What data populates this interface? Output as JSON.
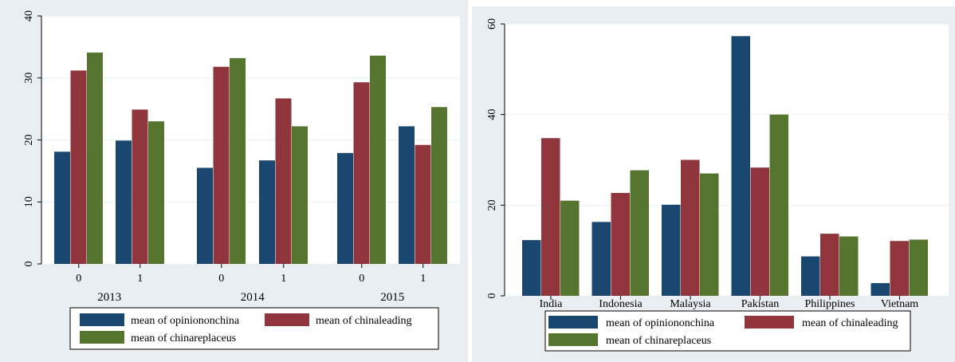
{
  "colors": {
    "series": [
      "#1a476f",
      "#90353b",
      "#55752f"
    ],
    "panel_background": "#e9eef3",
    "plot_background": "#ffffff",
    "gridline": "#eaf2f3"
  },
  "chart_data": [
    {
      "type": "bar",
      "ylim": [
        0,
        40
      ],
      "yticks": [
        "0",
        "10",
        "20",
        "30",
        "40"
      ],
      "grid": true,
      "legend_position": "bottom",
      "groups": [
        {
          "label": "2013",
          "categories": [
            {
              "label": "0",
              "values": [
                18.1,
                31.2,
                34.1
              ]
            },
            {
              "label": "1",
              "values": [
                19.9,
                24.9,
                23.0
              ]
            }
          ]
        },
        {
          "label": "2014",
          "categories": [
            {
              "label": "0",
              "values": [
                15.5,
                31.8,
                33.2
              ]
            },
            {
              "label": "1",
              "values": [
                16.7,
                26.7,
                22.2
              ]
            }
          ]
        },
        {
          "label": "2015",
          "categories": [
            {
              "label": "0",
              "values": [
                17.9,
                29.3,
                33.6
              ]
            },
            {
              "label": "1",
              "values": [
                22.2,
                19.2,
                25.3
              ]
            }
          ]
        }
      ],
      "series": [
        {
          "name": "mean of opiniononchina",
          "color": "#1a476f"
        },
        {
          "name": "mean of chinaleading",
          "color": "#90353b"
        },
        {
          "name": "mean of chinareplaceus",
          "color": "#55752f"
        }
      ]
    },
    {
      "type": "bar",
      "ylim": [
        0,
        60
      ],
      "yticks": [
        "0",
        "20",
        "40",
        "60"
      ],
      "grid": true,
      "legend_position": "bottom",
      "categories": [
        "India",
        "Indonesia",
        "Malaysia",
        "Pakistan",
        "Philippines",
        "Vietnam"
      ],
      "series": [
        {
          "name": "mean of opiniononchina",
          "color": "#1a476f",
          "values": [
            12.3,
            16.3,
            20.1,
            57.3,
            8.7,
            2.8
          ]
        },
        {
          "name": "mean of chinaleading",
          "color": "#90353b",
          "values": [
            34.8,
            22.7,
            30.0,
            28.3,
            13.7,
            12.1
          ]
        },
        {
          "name": "mean of chinareplaceus",
          "color": "#55752f",
          "values": [
            21.0,
            27.7,
            27.0,
            40.0,
            13.1,
            12.4
          ]
        }
      ]
    }
  ]
}
